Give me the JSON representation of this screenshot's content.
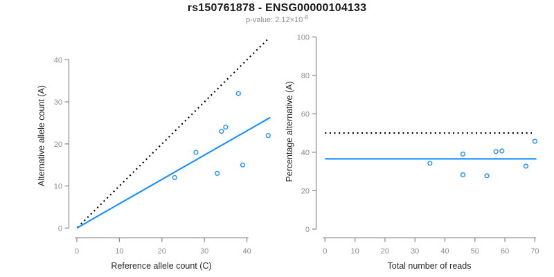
{
  "header": {
    "title": "rs150761878 - ENSG00000104133",
    "pvalue_prefix": "p-value: 2.12×10",
    "pvalue_exponent": "-8"
  },
  "colors": {
    "accent_blue": "#1E90FF",
    "identity_black": "#000000",
    "axis_gray": "#858585",
    "tick_label_gray": "#8c8c8c",
    "axis_title_dark": "#262626"
  },
  "chart_data": [
    {
      "type": "scatter",
      "name": "allele-counts-panel",
      "xlabel": "Reference allele count (C)",
      "ylabel": "Alternative allele count (A)",
      "xlim": [
        0,
        45.5
      ],
      "ylim": [
        0,
        45.5
      ],
      "xticks": [
        0,
        10,
        20,
        30,
        40
      ],
      "yticks": [
        0,
        10,
        20,
        30,
        40
      ],
      "grid": false,
      "point_style": "open-circle",
      "points": [
        [
          23,
          12
        ],
        [
          28,
          18
        ],
        [
          33,
          13
        ],
        [
          34,
          23
        ],
        [
          35,
          24
        ],
        [
          38,
          32
        ],
        [
          39,
          15
        ],
        [
          45,
          22
        ]
      ],
      "lines": [
        {
          "name": "identity-line",
          "style": "dotted",
          "color": "#000000",
          "from": [
            0.2,
            0.2
          ],
          "to": [
            45.2,
            45.2
          ]
        },
        {
          "name": "fit-line",
          "style": "solid",
          "color": "#1E90FF",
          "from": [
            0,
            0
          ],
          "to": [
            45.5,
            26.3
          ]
        }
      ]
    },
    {
      "type": "scatter",
      "name": "percentage-panel",
      "xlabel": "Total number of reads",
      "ylabel": "Percentage alternative (A)",
      "xlim": [
        0,
        70.5
      ],
      "ylim": [
        0,
        100
      ],
      "xticks": [
        0,
        10,
        20,
        30,
        40,
        50,
        60,
        70
      ],
      "yticks": [
        0,
        20,
        40,
        60,
        80,
        100
      ],
      "grid": false,
      "point_style": "open-circle",
      "points": [
        [
          35,
          34.3
        ],
        [
          46,
          39.1
        ],
        [
          46,
          28.3
        ],
        [
          57,
          40.4
        ],
        [
          59,
          40.7
        ],
        [
          70,
          45.7
        ],
        [
          54,
          27.8
        ],
        [
          67,
          32.8
        ]
      ],
      "lines": [
        {
          "name": "expected-50pct-line",
          "style": "dotted",
          "color": "#000000",
          "from": [
            0,
            50
          ],
          "to": [
            69,
            50
          ]
        },
        {
          "name": "observed-pct-line",
          "style": "solid",
          "color": "#1E90FF",
          "from": [
            0,
            36.6
          ],
          "to": [
            70.5,
            36.6
          ]
        }
      ]
    }
  ]
}
